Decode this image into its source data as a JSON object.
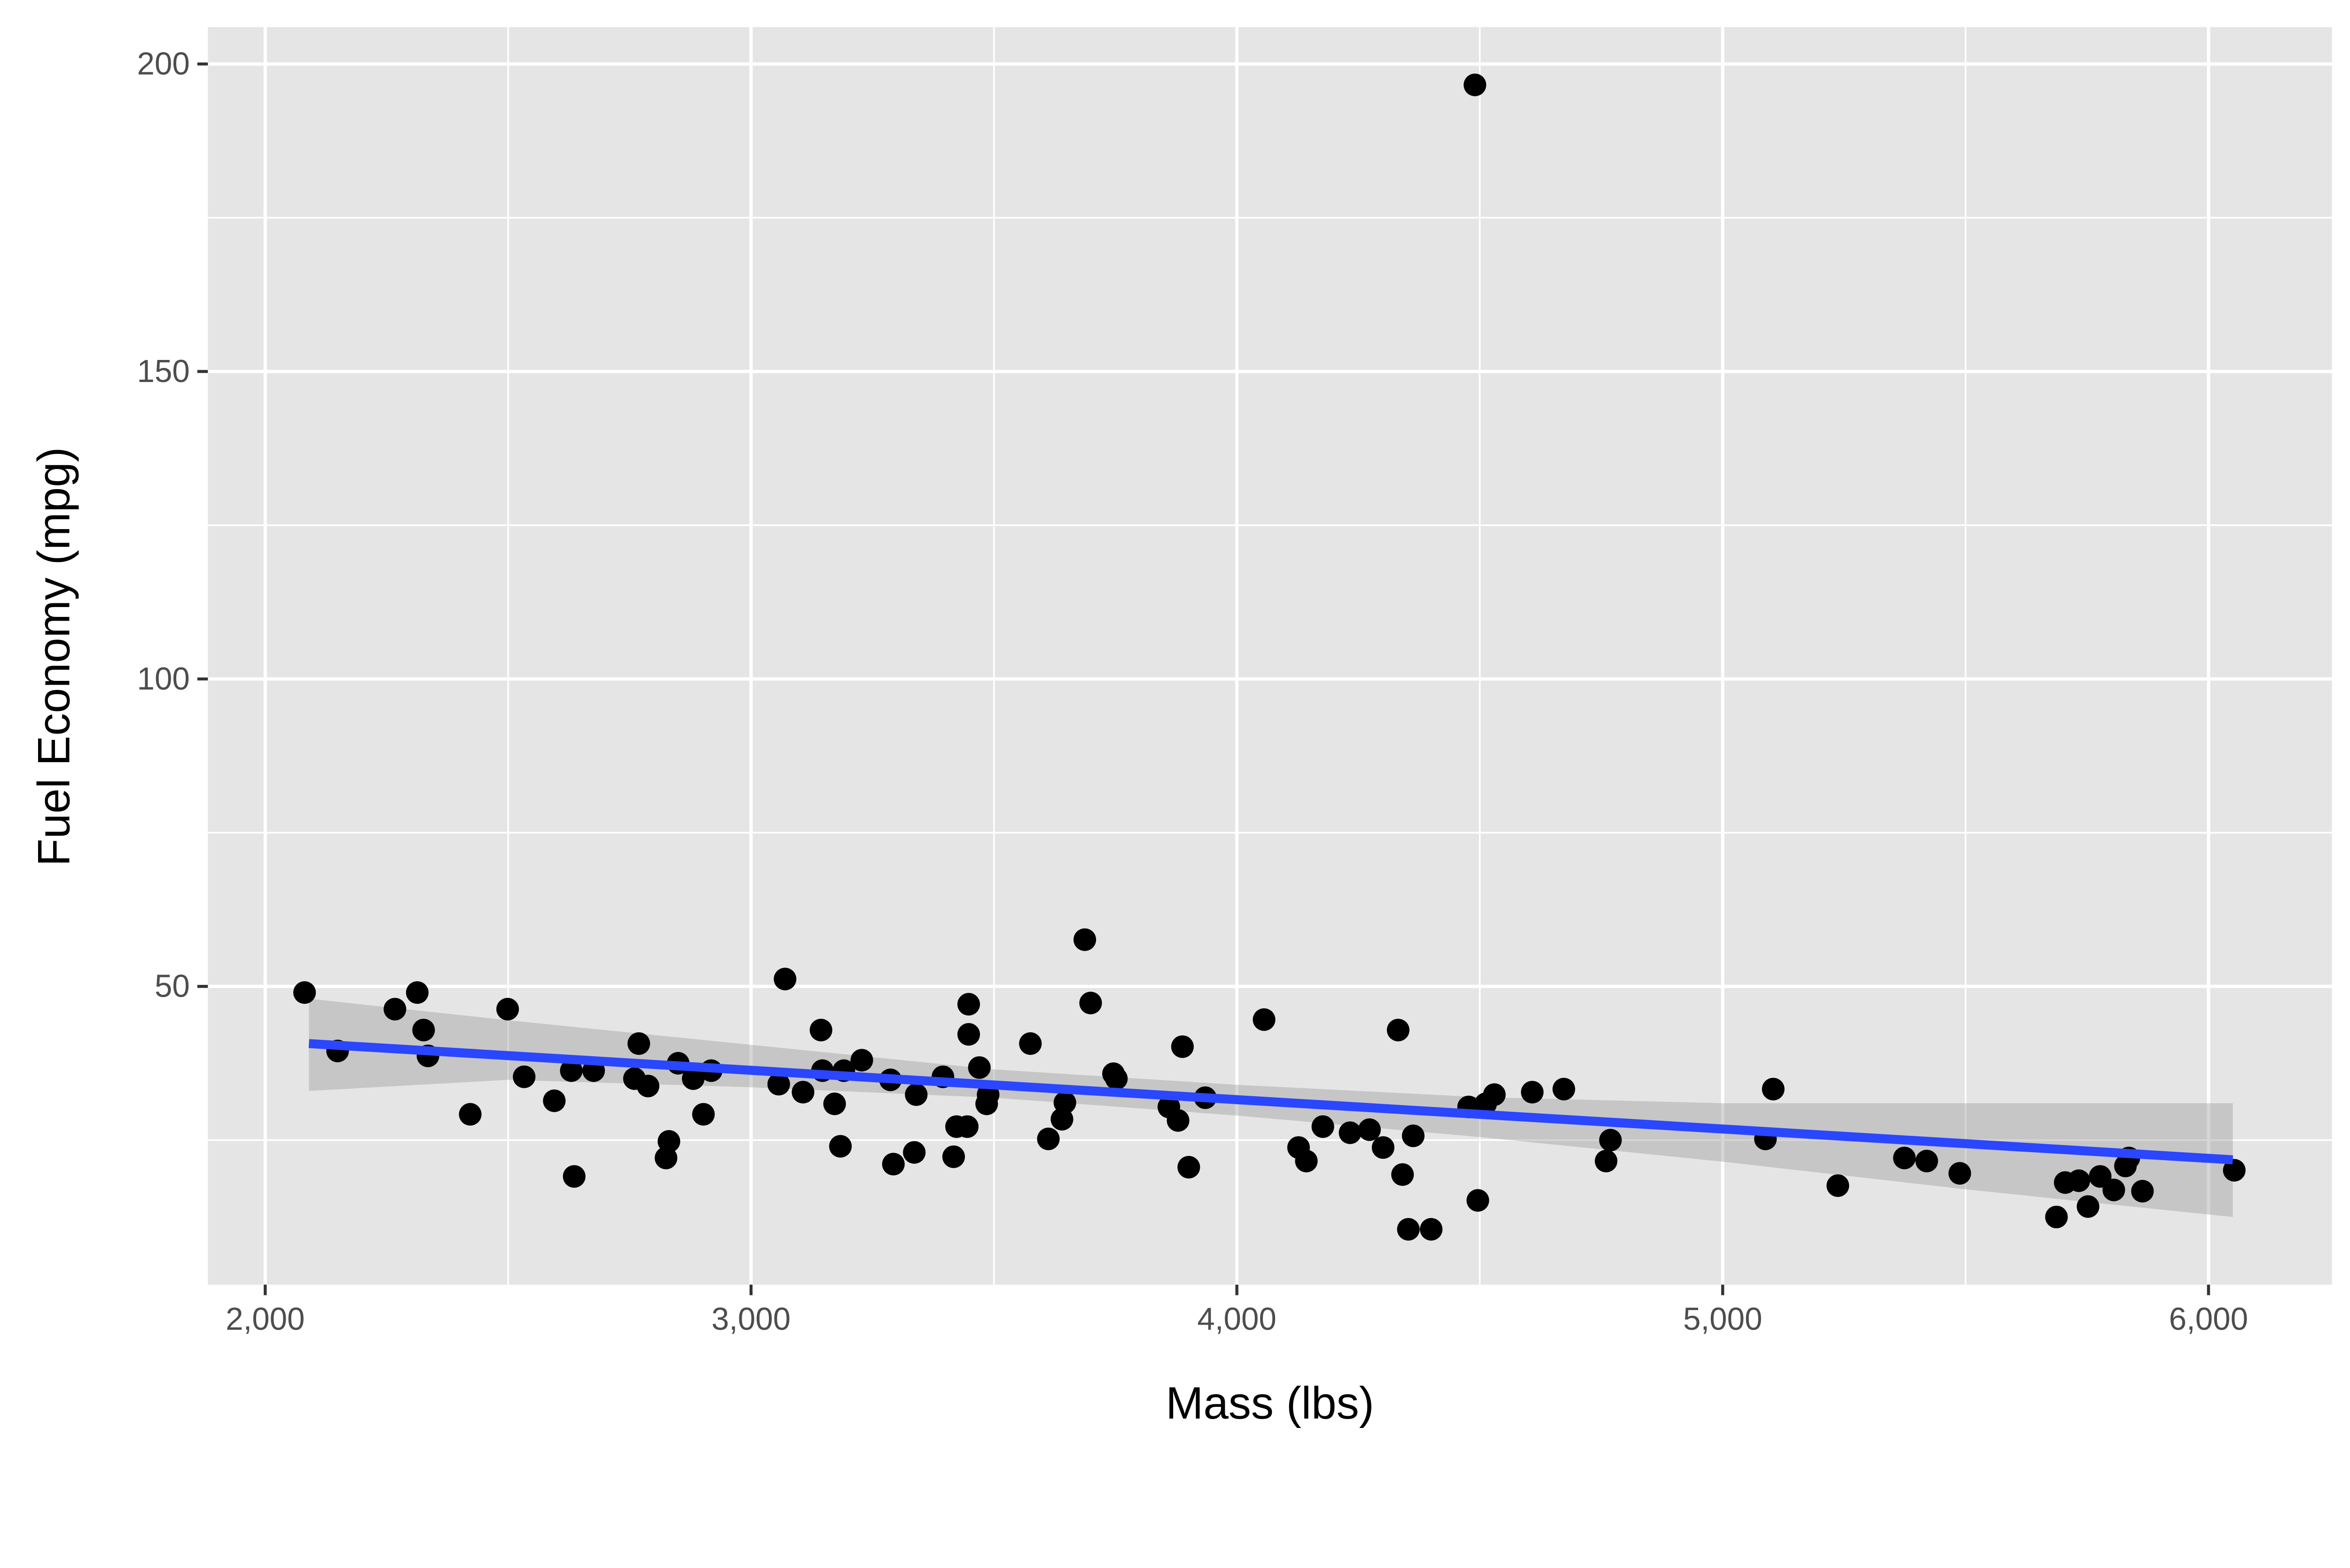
{
  "chart_data": {
    "type": "scatter",
    "title": "",
    "xlabel": "Mass (lbs)",
    "ylabel": "Fuel Economy (mpg)",
    "xlim": [
      1882,
      6254
    ],
    "ylim": [
      1.5,
      206
    ],
    "x_ticks": [
      2000,
      3000,
      4000,
      5000,
      6000
    ],
    "x_tick_labels": [
      "2,000",
      "3,000",
      "4,000",
      "5,000",
      "6,000"
    ],
    "x_minor_ticks": [
      2500,
      3500,
      4500,
      5500
    ],
    "y_ticks": [
      50,
      100,
      150,
      200
    ],
    "y_tick_labels": [
      "50",
      "100",
      "150",
      "200"
    ],
    "y_minor_ticks": [
      25,
      75,
      125,
      175
    ],
    "grid": true,
    "colors": {
      "panel_background": "#e5e5e5",
      "grid": "#ffffff",
      "points": "#000000",
      "fit_line": "#2b46ff",
      "confidence_band": "#999999"
    },
    "points": [
      [
        2081,
        49
      ],
      [
        2149,
        39.5
      ],
      [
        2267,
        46.3
      ],
      [
        2313,
        49
      ],
      [
        2326,
        42.9
      ],
      [
        2335,
        38.7
      ],
      [
        2422,
        29.2
      ],
      [
        2499,
        46.3
      ],
      [
        2533,
        35.3
      ],
      [
        2595,
        31.4
      ],
      [
        2630,
        36.3
      ],
      [
        2636,
        19.1
      ],
      [
        2676,
        36.3
      ],
      [
        2760,
        35
      ],
      [
        2769,
        40.7
      ],
      [
        2788,
        33.8
      ],
      [
        2825,
        22.1
      ],
      [
        2831,
        24.8
      ],
      [
        2850,
        37.5
      ],
      [
        2881,
        35
      ],
      [
        2902,
        29.2
      ],
      [
        2918,
        36.3
      ],
      [
        3057,
        34.1
      ],
      [
        3070,
        51.2
      ],
      [
        3107,
        32.8
      ],
      [
        3144,
        42.9
      ],
      [
        3147,
        36.3
      ],
      [
        3172,
        30.9
      ],
      [
        3184,
        24
      ],
      [
        3191,
        36.3
      ],
      [
        3228,
        38
      ],
      [
        3287,
        34.8
      ],
      [
        3293,
        21.1
      ],
      [
        3336,
        23
      ],
      [
        3340,
        32.4
      ],
      [
        3395,
        35.3
      ],
      [
        3417,
        22.3
      ],
      [
        3423,
        27.2
      ],
      [
        3445,
        27.2
      ],
      [
        3448,
        47.1
      ],
      [
        3448,
        42.2
      ],
      [
        3470,
        36.8
      ],
      [
        3485,
        30.9
      ],
      [
        3488,
        32.4
      ],
      [
        3575,
        40.7
      ],
      [
        3612,
        25.2
      ],
      [
        3640,
        28.4
      ],
      [
        3646,
        31.1
      ],
      [
        3687,
        57.6
      ],
      [
        3699,
        47.3
      ],
      [
        3746,
        35.8
      ],
      [
        3752,
        35
      ],
      [
        3860,
        30.4
      ],
      [
        3879,
        28.2
      ],
      [
        3888,
        40.2
      ],
      [
        3901,
        20.6
      ],
      [
        3935,
        31.9
      ],
      [
        4056,
        44.6
      ],
      [
        4127,
        23.8
      ],
      [
        4143,
        21.6
      ],
      [
        4177,
        27.2
      ],
      [
        4233,
        26.2
      ],
      [
        4273,
        26.7
      ],
      [
        4301,
        23.8
      ],
      [
        4332,
        42.9
      ],
      [
        4341,
        19.4
      ],
      [
        4353,
        10.5
      ],
      [
        4363,
        25.7
      ],
      [
        4400,
        10.5
      ],
      [
        4477,
        30.4
      ],
      [
        4490,
        196.6
      ],
      [
        4496,
        15.2
      ],
      [
        4512,
        30.9
      ],
      [
        4530,
        32.4
      ],
      [
        4608,
        32.8
      ],
      [
        4673,
        33.3
      ],
      [
        4760,
        21.6
      ],
      [
        4769,
        25
      ],
      [
        5088,
        25.2
      ],
      [
        5104,
        33.3
      ],
      [
        5237,
        17.6
      ],
      [
        5374,
        22.1
      ],
      [
        5420,
        21.6
      ],
      [
        5488,
        19.6
      ],
      [
        5687,
        12.5
      ],
      [
        5705,
        18.1
      ],
      [
        5733,
        18.4
      ],
      [
        5752,
        14.2
      ],
      [
        5777,
        19.1
      ],
      [
        5805,
        16.9
      ],
      [
        5829,
        20.8
      ],
      [
        5836,
        22.1
      ],
      [
        5864,
        16.7
      ],
      [
        6053,
        20.1
      ]
    ],
    "fit": {
      "method": "linear",
      "x": [
        2090,
        6050
      ],
      "y": [
        40.7,
        21.8
      ],
      "band": {
        "x": [
          2090,
          2500,
          3000,
          3500,
          4000,
          4500,
          5000,
          5500,
          6050
        ],
        "lower": [
          33,
          34.8,
          33.6,
          31.9,
          29,
          25.5,
          21.5,
          17,
          12.5
        ],
        "upper": [
          48,
          44.5,
          40.5,
          36.5,
          34,
          32,
          31,
          31,
          31
        ]
      }
    }
  }
}
